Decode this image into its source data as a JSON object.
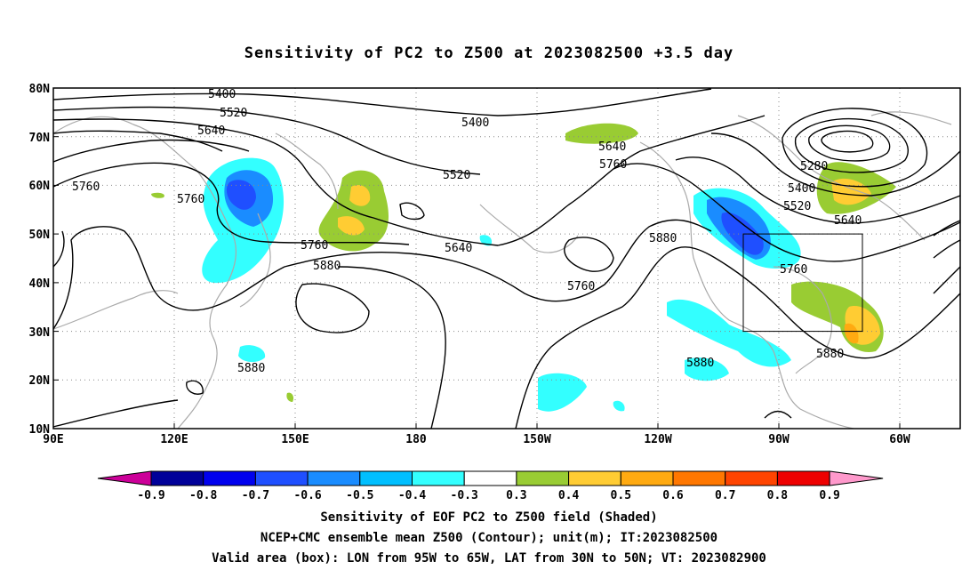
{
  "title": "Sensitivity of PC2 to Z500 at 2023082500 +3.5 day",
  "lat_labels": [
    "80N",
    "70N",
    "60N",
    "50N",
    "40N",
    "30N",
    "20N",
    "10N"
  ],
  "lon_labels": [
    "90E",
    "120E",
    "150E",
    "180",
    "150W",
    "120W",
    "90W",
    "60W"
  ],
  "contour_labels": [
    {
      "text": "5400"
    },
    {
      "text": "5520"
    },
    {
      "text": "5640"
    },
    {
      "text": "5760"
    },
    {
      "text": "5760"
    },
    {
      "text": "5400"
    },
    {
      "text": "5520"
    },
    {
      "text": "5640"
    },
    {
      "text": "5760"
    },
    {
      "text": "5760"
    },
    {
      "text": "5880"
    },
    {
      "text": "5640"
    },
    {
      "text": "5760"
    },
    {
      "text": "5880"
    },
    {
      "text": "5280"
    },
    {
      "text": "5400"
    },
    {
      "text": "5520"
    },
    {
      "text": "5640"
    },
    {
      "text": "5760"
    },
    {
      "text": "5880"
    },
    {
      "text": "5880"
    },
    {
      "text": "5880"
    }
  ],
  "colorbar": {
    "ticks": [
      "-0.9",
      "-0.8",
      "-0.7",
      "-0.6",
      "-0.5",
      "-0.4",
      "-0.3",
      "0.3",
      "0.4",
      "0.5",
      "0.6",
      "0.7",
      "0.8",
      "0.9"
    ],
    "colors": [
      "#000099",
      "#0000ee",
      "#1f4fff",
      "#1a8cff",
      "#00bfff",
      "#33ffff",
      "#ffffff",
      "#99cc33",
      "#ffcc33",
      "#ffaa11",
      "#ff7700",
      "#ff4400",
      "#ee0000"
    ],
    "low_end_color": "#cc0099",
    "high_end_color": "#ff99cc"
  },
  "valid_box": {
    "lon_west": "95W",
    "lon_east": "65W",
    "lat_south": "30N",
    "lat_north": "50N"
  },
  "captions": {
    "line1": "Sensitivity of EOF PC2 to Z500 field (Shaded)",
    "line2": "NCEP+CMC ensemble mean Z500 (Contour); unit(m); IT:2023082500",
    "line3": "Valid area (box): LON from 95W to 65W, LAT from 30N to 50N; VT: 2023082900"
  }
}
